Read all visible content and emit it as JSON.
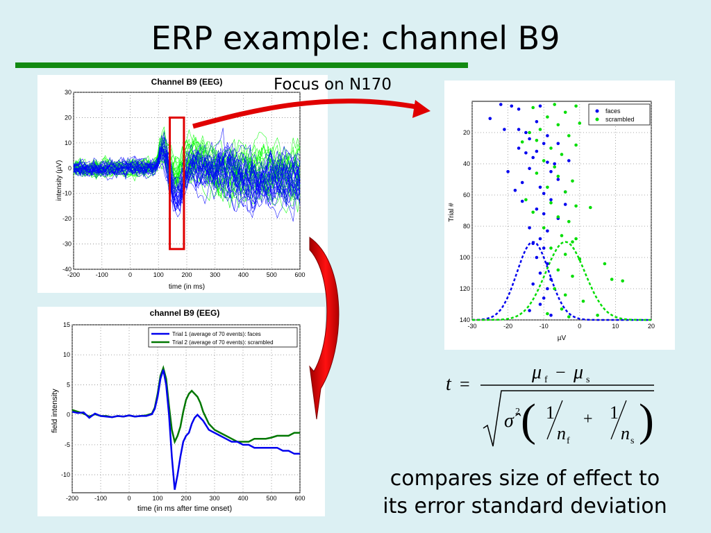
{
  "slide": {
    "title": "ERP example: channel B9",
    "focus_label": "Focus on N170",
    "caption_line1": "compares size of effect to",
    "caption_line2": "its error standard deviation",
    "accent_color": "#128a12",
    "arrow_color": "#e00000"
  },
  "formula": {
    "t": "t",
    "equals": "=",
    "mu": "μ",
    "sub_f": "f",
    "sub_s": "s",
    "minus": "−",
    "plus": "+",
    "sigma_hat": "σ̂",
    "squared": "2",
    "one": "1",
    "n": "n"
  },
  "chart_data": [
    {
      "type": "line",
      "title": "Channel B9 (EEG)",
      "xlabel": "time (in ms)",
      "ylabel": "intensity (µV)",
      "xlim": [
        -200,
        600
      ],
      "ylim": [
        -40,
        30
      ],
      "xticks": [
        -200,
        -100,
        0,
        100,
        200,
        300,
        400,
        500,
        600
      ],
      "yticks": [
        -40,
        -30,
        -20,
        -10,
        0,
        10,
        20,
        30
      ],
      "grid": true,
      "highlight_window": [
        140,
        190
      ],
      "series": [
        {
          "color": "#0000ff",
          "count": 70
        },
        {
          "color": "#00ff00",
          "count": 70
        }
      ]
    },
    {
      "type": "line",
      "title": "channel B9 (EEG)",
      "xlabel": "time (in ms after time onset)",
      "ylabel": "field intensity",
      "xlim": [
        -200,
        600
      ],
      "ylim": [
        -13,
        15
      ],
      "xticks": [
        -200,
        -100,
        0,
        100,
        200,
        300,
        400,
        500,
        600
      ],
      "yticks": [
        -10,
        -5,
        0,
        5,
        10,
        15
      ],
      "grid": true,
      "legend_position": "top-right",
      "x": [
        -200,
        -180,
        -160,
        -140,
        -120,
        -100,
        -80,
        -60,
        -40,
        -20,
        0,
        20,
        40,
        60,
        80,
        90,
        100,
        110,
        120,
        130,
        140,
        150,
        160,
        170,
        180,
        190,
        200,
        210,
        220,
        230,
        240,
        250,
        260,
        280,
        300,
        320,
        340,
        360,
        380,
        400,
        420,
        440,
        460,
        480,
        500,
        520,
        540,
        560,
        580,
        600
      ],
      "series": [
        {
          "name": "Trial 1 (average of 70 events): faces",
          "color": "#0000ee",
          "values": [
            0.5,
            0.3,
            0.4,
            -0.5,
            0.2,
            -0.2,
            -0.3,
            -0.4,
            -0.2,
            -0.3,
            -0.1,
            -0.3,
            -0.2,
            -0.2,
            0.1,
            1.0,
            3.0,
            6.0,
            7.5,
            5.0,
            0.0,
            -7.0,
            -12.5,
            -10.0,
            -7.0,
            -4.5,
            -3.5,
            -3.0,
            -1.5,
            -0.5,
            0.0,
            -0.5,
            -1.0,
            -2.5,
            -3.0,
            -3.5,
            -4.0,
            -4.5,
            -4.5,
            -5.0,
            -5.0,
            -5.5,
            -5.5,
            -5.5,
            -5.5,
            -5.5,
            -6.0,
            -6.0,
            -6.5,
            -6.5
          ]
        },
        {
          "name": "Trial 2 (average of 70 events): scrambled",
          "color": "#007700",
          "values": [
            0.8,
            0.5,
            0.2,
            -0.3,
            0.1,
            -0.2,
            -0.2,
            -0.4,
            -0.2,
            -0.3,
            -0.1,
            -0.3,
            -0.2,
            -0.1,
            0.2,
            1.2,
            3.5,
            6.5,
            7.8,
            6.0,
            1.5,
            -2.5,
            -4.5,
            -3.5,
            -2.0,
            0.5,
            2.5,
            3.5,
            4.0,
            3.5,
            3.0,
            2.0,
            0.5,
            -1.5,
            -2.5,
            -3.0,
            -3.5,
            -4.0,
            -4.5,
            -4.5,
            -4.5,
            -4.0,
            -4.0,
            -4.0,
            -3.8,
            -3.5,
            -3.5,
            -3.5,
            -3.0,
            -3.0
          ]
        }
      ]
    },
    {
      "type": "scatter",
      "xlabel": "µV",
      "ylabel": "Trial #",
      "xlim": [
        -30,
        20
      ],
      "ylim": [
        140,
        0
      ],
      "xticks": [
        -30,
        -20,
        -10,
        0,
        10,
        20
      ],
      "yticks": [
        20,
        40,
        60,
        80,
        100,
        120,
        140
      ],
      "grid": true,
      "legend_position": "top-right",
      "series": [
        {
          "name": "faces",
          "color": "#0000ee",
          "points": [
            [
              -22,
              2
            ],
            [
              -19,
              3
            ],
            [
              -17,
              5
            ],
            [
              -11,
              3
            ],
            [
              -25,
              11
            ],
            [
              -21,
              18
            ],
            [
              -17,
              18
            ],
            [
              -12,
              13
            ],
            [
              -15,
              20
            ],
            [
              -9,
              22
            ],
            [
              -14,
              24
            ],
            [
              -10,
              27
            ],
            [
              -17,
              30
            ],
            [
              -12,
              32
            ],
            [
              -15,
              33
            ],
            [
              -6,
              27
            ],
            [
              -13,
              36
            ],
            [
              -9,
              39
            ],
            [
              -7,
              40
            ],
            [
              -20,
              45
            ],
            [
              -14,
              43
            ],
            [
              -8,
              45
            ],
            [
              -16,
              52
            ],
            [
              -11,
              55
            ],
            [
              -6,
              50
            ],
            [
              -18,
              57
            ],
            [
              -10,
              59
            ],
            [
              -4,
              58
            ],
            [
              -16,
              64
            ],
            [
              -8,
              63
            ],
            [
              -12,
              69
            ],
            [
              -10,
              72
            ],
            [
              -6,
              75
            ],
            [
              -14,
              81
            ],
            [
              -9,
              83
            ],
            [
              -11,
              88
            ],
            [
              -13,
              91
            ],
            [
              -10,
              94
            ],
            [
              -12,
              100
            ],
            [
              -9,
              104
            ],
            [
              -11,
              110
            ],
            [
              -8,
              114
            ],
            [
              -13,
              117
            ],
            [
              -9,
              120
            ],
            [
              -10,
              126
            ],
            [
              -11,
              130
            ],
            [
              -14,
              134
            ],
            [
              -8,
              137
            ],
            [
              -3,
              38
            ],
            [
              -4,
              66
            ]
          ]
        },
        {
          "name": "scrambled",
          "color": "#00dd00",
          "points": [
            [
              -13,
              4
            ],
            [
              -7,
              2
            ],
            [
              -4,
              7
            ],
            [
              -1,
              3
            ],
            [
              -9,
              10
            ],
            [
              0,
              14
            ],
            [
              -6,
              15
            ],
            [
              -11,
              18
            ],
            [
              -14,
              20
            ],
            [
              -3,
              22
            ],
            [
              -1,
              28
            ],
            [
              -12,
              25
            ],
            [
              -16,
              26
            ],
            [
              -8,
              30
            ],
            [
              -5,
              34
            ],
            [
              -10,
              38
            ],
            [
              -7,
              42
            ],
            [
              -12,
              46
            ],
            [
              -6,
              48
            ],
            [
              -2,
              51
            ],
            [
              -9,
              55
            ],
            [
              -4,
              58
            ],
            [
              -15,
              63
            ],
            [
              -8,
              65
            ],
            [
              -1,
              67
            ],
            [
              3,
              68
            ],
            [
              -13,
              71
            ],
            [
              -6,
              74
            ],
            [
              -3,
              77
            ],
            [
              -10,
              81
            ],
            [
              -5,
              86
            ],
            [
              -2,
              90
            ],
            [
              -8,
              94
            ],
            [
              -4,
              98
            ],
            [
              0,
              101
            ],
            [
              7,
              104
            ],
            [
              -6,
              108
            ],
            [
              -2,
              112
            ],
            [
              9,
              114
            ],
            [
              12,
              115
            ],
            [
              -7,
              120
            ],
            [
              -4,
              124
            ],
            [
              1,
              128
            ],
            [
              -5,
              133
            ],
            [
              -9,
              136
            ],
            [
              -3,
              138
            ],
            [
              5,
              137
            ],
            [
              -1,
              88
            ]
          ]
        }
      ],
      "gaussians": [
        {
          "name": "faces",
          "mean": -13,
          "sd": 4.5,
          "color": "#0000ee"
        },
        {
          "name": "scrambled",
          "mean": -4,
          "sd": 5.5,
          "color": "#00dd00"
        }
      ]
    }
  ]
}
